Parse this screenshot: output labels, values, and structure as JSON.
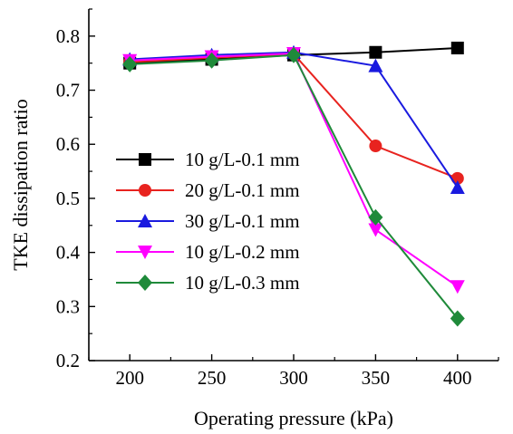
{
  "chart_data": {
    "type": "line",
    "xlabel": "Operating pressure (kPa)",
    "ylabel": "TKE dissipation ratio",
    "xlim": [
      175,
      425
    ],
    "ylim": [
      0.2,
      0.85
    ],
    "x_ticks": [
      "200",
      "250",
      "300",
      "350",
      "400"
    ],
    "y_ticks": [
      "0.2",
      "0.3",
      "0.4",
      "0.5",
      "0.6",
      "0.7",
      "0.8"
    ],
    "legend_position": "left-center",
    "grid": false,
    "x": [
      200,
      250,
      300,
      350,
      400
    ],
    "series": [
      {
        "name": "10 g/L-0.1 mm",
        "color": "#000000",
        "marker": "square",
        "values": [
          0.75,
          0.757,
          0.765,
          0.77,
          0.778
        ]
      },
      {
        "name": "20 g/L-0.1 mm",
        "color": "#e8231f",
        "marker": "circle",
        "values": [
          0.752,
          0.76,
          0.767,
          0.597,
          0.537
        ]
      },
      {
        "name": "30 g/L-0.1 mm",
        "color": "#1a1adf",
        "marker": "triangle-up",
        "values": [
          0.757,
          0.765,
          0.77,
          0.745,
          0.52
        ]
      },
      {
        "name": "10 g/L-0.2 mm",
        "color": "#ff00ff",
        "marker": "triangle-down",
        "values": [
          0.755,
          0.762,
          0.768,
          0.442,
          0.337
        ]
      },
      {
        "name": "10 g/L-0.3 mm",
        "color": "#1f8a3a",
        "marker": "diamond",
        "values": [
          0.748,
          0.755,
          0.765,
          0.465,
          0.278
        ]
      }
    ]
  }
}
